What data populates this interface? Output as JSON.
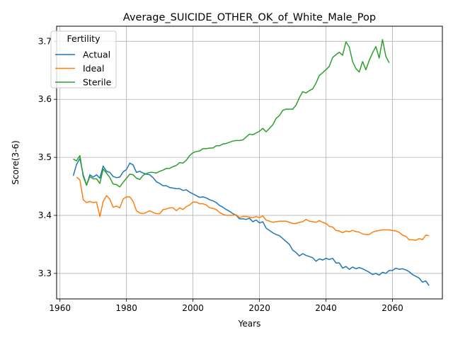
{
  "chart_data": {
    "type": "line",
    "title": "Average_SUICIDE_OTHER_OK_of_White_Male_Pop",
    "xlabel": "Years",
    "ylabel": "Score(3-6)",
    "xlim": [
      1959,
      2075
    ],
    "ylim": [
      3.256,
      3.726
    ],
    "xticks": [
      1960,
      1980,
      2000,
      2020,
      2040,
      2060
    ],
    "yticks": [
      3.3,
      3.4,
      3.5,
      3.6,
      3.7
    ],
    "grid": true,
    "legend": {
      "title": "Fertility",
      "placement": "top-left"
    },
    "series": [
      {
        "name": "Actual",
        "color": "#1f77b4",
        "points": [
          [
            1964,
            3.468
          ],
          [
            1965,
            3.488
          ],
          [
            1966,
            3.498
          ],
          [
            1967,
            3.47
          ],
          [
            1968,
            3.452
          ],
          [
            1969,
            3.47
          ],
          [
            1970,
            3.466
          ],
          [
            1971,
            3.47
          ],
          [
            1972,
            3.464
          ],
          [
            1973,
            3.485
          ],
          [
            1974,
            3.476
          ],
          [
            1975,
            3.474
          ],
          [
            1976,
            3.467
          ],
          [
            1977,
            3.465
          ],
          [
            1978,
            3.466
          ],
          [
            1979,
            3.475
          ],
          [
            1980,
            3.479
          ],
          [
            1981,
            3.49
          ],
          [
            1982,
            3.487
          ],
          [
            1983,
            3.474
          ],
          [
            1984,
            3.476
          ],
          [
            1985,
            3.473
          ],
          [
            1986,
            3.471
          ],
          [
            1987,
            3.47
          ],
          [
            1988,
            3.465
          ],
          [
            1989,
            3.458
          ],
          [
            1990,
            3.455
          ],
          [
            1991,
            3.451
          ],
          [
            1992,
            3.451
          ],
          [
            1993,
            3.448
          ],
          [
            1994,
            3.447
          ],
          [
            1995,
            3.446
          ],
          [
            1996,
            3.446
          ],
          [
            1997,
            3.443
          ],
          [
            1998,
            3.444
          ],
          [
            1999,
            3.44
          ],
          [
            2000,
            3.437
          ],
          [
            2001,
            3.434
          ],
          [
            2002,
            3.431
          ],
          [
            2003,
            3.432
          ],
          [
            2004,
            3.43
          ],
          [
            2005,
            3.427
          ],
          [
            2006,
            3.425
          ],
          [
            2007,
            3.422
          ],
          [
            2008,
            3.417
          ],
          [
            2009,
            3.414
          ],
          [
            2010,
            3.41
          ],
          [
            2011,
            3.407
          ],
          [
            2012,
            3.403
          ],
          [
            2013,
            3.4
          ],
          [
            2014,
            3.394
          ],
          [
            2015,
            3.394
          ],
          [
            2016,
            3.393
          ],
          [
            2017,
            3.395
          ],
          [
            2018,
            3.389
          ],
          [
            2019,
            3.392
          ],
          [
            2020,
            3.387
          ],
          [
            2021,
            3.389
          ],
          [
            2022,
            3.378
          ],
          [
            2023,
            3.374
          ],
          [
            2024,
            3.37
          ],
          [
            2025,
            3.367
          ],
          [
            2026,
            3.365
          ],
          [
            2027,
            3.36
          ],
          [
            2028,
            3.355
          ],
          [
            2029,
            3.35
          ],
          [
            2030,
            3.34
          ],
          [
            2031,
            3.336
          ],
          [
            2032,
            3.33
          ],
          [
            2033,
            3.334
          ],
          [
            2034,
            3.331
          ],
          [
            2035,
            3.329
          ],
          [
            2036,
            3.327
          ],
          [
            2037,
            3.321
          ],
          [
            2038,
            3.325
          ],
          [
            2039,
            3.323
          ],
          [
            2040,
            3.326
          ],
          [
            2041,
            3.324
          ],
          [
            2042,
            3.326
          ],
          [
            2043,
            3.318
          ],
          [
            2044,
            3.318
          ],
          [
            2045,
            3.309
          ],
          [
            2046,
            3.312
          ],
          [
            2047,
            3.307
          ],
          [
            2048,
            3.311
          ],
          [
            2049,
            3.308
          ],
          [
            2050,
            3.31
          ],
          [
            2051,
            3.308
          ],
          [
            2052,
            3.305
          ],
          [
            2053,
            3.302
          ],
          [
            2054,
            3.298
          ],
          [
            2055,
            3.3
          ],
          [
            2056,
            3.297
          ],
          [
            2057,
            3.302
          ],
          [
            2058,
            3.3
          ],
          [
            2059,
            3.305
          ],
          [
            2060,
            3.305
          ],
          [
            2061,
            3.309
          ],
          [
            2062,
            3.307
          ],
          [
            2063,
            3.308
          ],
          [
            2064,
            3.306
          ],
          [
            2065,
            3.303
          ],
          [
            2066,
            3.298
          ],
          [
            2067,
            3.295
          ],
          [
            2068,
            3.292
          ],
          [
            2069,
            3.285
          ],
          [
            2070,
            3.287
          ],
          [
            2071,
            3.279
          ]
        ]
      },
      {
        "name": "Ideal",
        "color": "#ff7f0e",
        "points": [
          [
            1965,
            3.466
          ],
          [
            1966,
            3.461
          ],
          [
            1967,
            3.427
          ],
          [
            1968,
            3.422
          ],
          [
            1969,
            3.424
          ],
          [
            1970,
            3.422
          ],
          [
            1971,
            3.423
          ],
          [
            1972,
            3.398
          ],
          [
            1973,
            3.424
          ],
          [
            1974,
            3.434
          ],
          [
            1975,
            3.428
          ],
          [
            1976,
            3.414
          ],
          [
            1977,
            3.416
          ],
          [
            1978,
            3.413
          ],
          [
            1979,
            3.428
          ],
          [
            1980,
            3.432
          ],
          [
            1981,
            3.432
          ],
          [
            1982,
            3.424
          ],
          [
            1983,
            3.408
          ],
          [
            1984,
            3.404
          ],
          [
            1985,
            3.403
          ],
          [
            1986,
            3.405
          ],
          [
            1987,
            3.408
          ],
          [
            1988,
            3.405
          ],
          [
            1989,
            3.403
          ],
          [
            1990,
            3.403
          ],
          [
            1991,
            3.41
          ],
          [
            1992,
            3.411
          ],
          [
            1993,
            3.413
          ],
          [
            1994,
            3.413
          ],
          [
            1995,
            3.408
          ],
          [
            1996,
            3.413
          ],
          [
            1997,
            3.41
          ],
          [
            1998,
            3.415
          ],
          [
            1999,
            3.418
          ],
          [
            2000,
            3.423
          ],
          [
            2001,
            3.423
          ],
          [
            2002,
            3.42
          ],
          [
            2003,
            3.42
          ],
          [
            2004,
            3.418
          ],
          [
            2005,
            3.413
          ],
          [
            2006,
            3.412
          ],
          [
            2007,
            3.41
          ],
          [
            2008,
            3.405
          ],
          [
            2009,
            3.402
          ],
          [
            2010,
            3.4
          ],
          [
            2011,
            3.4
          ],
          [
            2012,
            3.4
          ],
          [
            2013,
            3.401
          ],
          [
            2014,
            3.396
          ],
          [
            2015,
            3.398
          ],
          [
            2016,
            3.398
          ],
          [
            2017,
            3.397
          ],
          [
            2018,
            3.396
          ],
          [
            2019,
            3.398
          ],
          [
            2020,
            3.396
          ],
          [
            2021,
            3.399
          ],
          [
            2022,
            3.392
          ],
          [
            2023,
            3.39
          ],
          [
            2024,
            3.388
          ],
          [
            2025,
            3.389
          ],
          [
            2026,
            3.39
          ],
          [
            2027,
            3.39
          ],
          [
            2028,
            3.39
          ],
          [
            2029,
            3.388
          ],
          [
            2030,
            3.386
          ],
          [
            2031,
            3.386
          ],
          [
            2032,
            3.388
          ],
          [
            2033,
            3.389
          ],
          [
            2034,
            3.393
          ],
          [
            2035,
            3.39
          ],
          [
            2036,
            3.389
          ],
          [
            2037,
            3.388
          ],
          [
            2038,
            3.391
          ],
          [
            2039,
            3.388
          ],
          [
            2040,
            3.386
          ],
          [
            2041,
            3.381
          ],
          [
            2042,
            3.38
          ],
          [
            2043,
            3.374
          ],
          [
            2044,
            3.373
          ],
          [
            2045,
            3.37
          ],
          [
            2046,
            3.373
          ],
          [
            2047,
            3.372
          ],
          [
            2048,
            3.374
          ],
          [
            2049,
            3.372
          ],
          [
            2050,
            3.371
          ],
          [
            2051,
            3.368
          ],
          [
            2052,
            3.367
          ],
          [
            2053,
            3.367
          ],
          [
            2054,
            3.371
          ],
          [
            2055,
            3.373
          ],
          [
            2056,
            3.374
          ],
          [
            2057,
            3.375
          ],
          [
            2058,
            3.375
          ],
          [
            2059,
            3.375
          ],
          [
            2060,
            3.374
          ],
          [
            2061,
            3.373
          ],
          [
            2062,
            3.371
          ],
          [
            2063,
            3.366
          ],
          [
            2064,
            3.364
          ],
          [
            2065,
            3.358
          ],
          [
            2066,
            3.358
          ],
          [
            2067,
            3.357
          ],
          [
            2068,
            3.36
          ],
          [
            2069,
            3.358
          ],
          [
            2070,
            3.366
          ],
          [
            2071,
            3.365
          ]
        ]
      },
      {
        "name": "Sterile",
        "color": "#2ca02c",
        "points": [
          [
            1964,
            3.497
          ],
          [
            1965,
            3.494
          ],
          [
            1966,
            3.503
          ],
          [
            1967,
            3.467
          ],
          [
            1968,
            3.452
          ],
          [
            1969,
            3.467
          ],
          [
            1970,
            3.463
          ],
          [
            1971,
            3.463
          ],
          [
            1972,
            3.455
          ],
          [
            1973,
            3.48
          ],
          [
            1974,
            3.473
          ],
          [
            1975,
            3.465
          ],
          [
            1976,
            3.454
          ],
          [
            1977,
            3.453
          ],
          [
            1978,
            3.449
          ],
          [
            1979,
            3.457
          ],
          [
            1980,
            3.464
          ],
          [
            1981,
            3.471
          ],
          [
            1982,
            3.47
          ],
          [
            1983,
            3.464
          ],
          [
            1984,
            3.462
          ],
          [
            1985,
            3.469
          ],
          [
            1986,
            3.472
          ],
          [
            1987,
            3.474
          ],
          [
            1988,
            3.474
          ],
          [
            1989,
            3.473
          ],
          [
            1990,
            3.476
          ],
          [
            1991,
            3.478
          ],
          [
            1992,
            3.481
          ],
          [
            1993,
            3.481
          ],
          [
            1994,
            3.484
          ],
          [
            1995,
            3.486
          ],
          [
            1996,
            3.491
          ],
          [
            1997,
            3.49
          ],
          [
            1998,
            3.495
          ],
          [
            1999,
            3.503
          ],
          [
            2000,
            3.508
          ],
          [
            2001,
            3.51
          ],
          [
            2002,
            3.511
          ],
          [
            2003,
            3.515
          ],
          [
            2004,
            3.515
          ],
          [
            2005,
            3.516
          ],
          [
            2006,
            3.516
          ],
          [
            2007,
            3.52
          ],
          [
            2008,
            3.52
          ],
          [
            2009,
            3.523
          ],
          [
            2010,
            3.524
          ],
          [
            2011,
            3.526
          ],
          [
            2012,
            3.528
          ],
          [
            2013,
            3.529
          ],
          [
            2014,
            3.529
          ],
          [
            2015,
            3.53
          ],
          [
            2016,
            3.535
          ],
          [
            2017,
            3.54
          ],
          [
            2018,
            3.539
          ],
          [
            2019,
            3.542
          ],
          [
            2020,
            3.545
          ],
          [
            2021,
            3.55
          ],
          [
            2022,
            3.544
          ],
          [
            2023,
            3.55
          ],
          [
            2024,
            3.556
          ],
          [
            2025,
            3.567
          ],
          [
            2026,
            3.572
          ],
          [
            2027,
            3.581
          ],
          [
            2028,
            3.583
          ],
          [
            2029,
            3.583
          ],
          [
            2030,
            3.583
          ],
          [
            2031,
            3.59
          ],
          [
            2032,
            3.603
          ],
          [
            2033,
            3.613
          ],
          [
            2034,
            3.611
          ],
          [
            2035,
            3.615
          ],
          [
            2036,
            3.618
          ],
          [
            2037,
            3.628
          ],
          [
            2038,
            3.641
          ],
          [
            2039,
            3.646
          ],
          [
            2040,
            3.651
          ],
          [
            2041,
            3.657
          ],
          [
            2042,
            3.672
          ],
          [
            2043,
            3.677
          ],
          [
            2044,
            3.681
          ],
          [
            2045,
            3.676
          ],
          [
            2046,
            3.699
          ],
          [
            2047,
            3.69
          ],
          [
            2048,
            3.665
          ],
          [
            2049,
            3.653
          ],
          [
            2050,
            3.647
          ],
          [
            2051,
            3.665
          ],
          [
            2052,
            3.651
          ],
          [
            2053,
            3.667
          ],
          [
            2054,
            3.68
          ],
          [
            2055,
            3.691
          ],
          [
            2056,
            3.671
          ],
          [
            2057,
            3.703
          ],
          [
            2058,
            3.674
          ],
          [
            2059,
            3.663
          ]
        ]
      }
    ]
  }
}
